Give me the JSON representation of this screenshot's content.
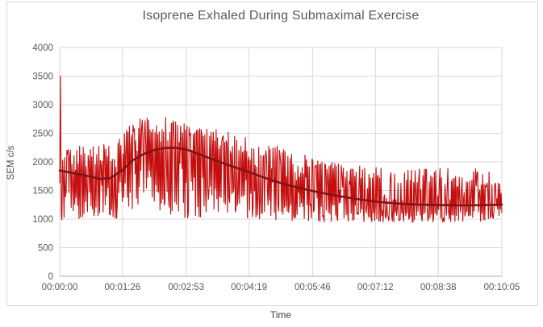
{
  "chart_data": {
    "type": "line",
    "title": "Isoprene Exhaled During Submaximal Exercise",
    "xlabel": "Time",
    "ylabel": "SEM c/s",
    "ylim": [
      0,
      4000
    ],
    "y_tick_step": 500,
    "y_ticks": [
      0,
      500,
      1000,
      1500,
      2000,
      2500,
      3000,
      3500,
      4000
    ],
    "x_range_seconds": [
      0,
      605
    ],
    "x_ticks": [
      {
        "t": 0,
        "label": "00:00:00"
      },
      {
        "t": 86,
        "label": "00:01:26"
      },
      {
        "t": 173,
        "label": "00:02:53"
      },
      {
        "t": 259,
        "label": "00:04:19"
      },
      {
        "t": 346,
        "label": "00:05:46"
      },
      {
        "t": 432,
        "label": "00:07:12"
      },
      {
        "t": 518,
        "label": "00:08:38"
      },
      {
        "t": 605,
        "label": "00:10:05"
      }
    ],
    "grid": true,
    "legend": "none",
    "colors": {
      "raw_signal": "#C50F0F",
      "smoothed_trend": "#7E1416",
      "gridline": "#D9D9D9",
      "axis_line": "#BFBFBF",
      "text": "#595959"
    },
    "series": [
      {
        "name": "raw-signal",
        "style": "noisy-line",
        "initial_spike": {
          "t": 1,
          "value": 3500
        },
        "envelope_t_min_max": [
          [
            0,
            950,
            2300
          ],
          [
            20,
            1000,
            2280
          ],
          [
            40,
            980,
            2270
          ],
          [
            60,
            950,
            2300
          ],
          [
            80,
            1000,
            2450
          ],
          [
            95,
            1050,
            2650
          ],
          [
            110,
            1050,
            2780
          ],
          [
            130,
            1050,
            2800
          ],
          [
            150,
            1050,
            2780
          ],
          [
            170,
            1020,
            2700
          ],
          [
            190,
            1000,
            2640
          ],
          [
            210,
            1000,
            2580
          ],
          [
            230,
            1000,
            2530
          ],
          [
            250,
            1000,
            2470
          ],
          [
            270,
            990,
            2400
          ],
          [
            290,
            980,
            2320
          ],
          [
            310,
            970,
            2240
          ],
          [
            330,
            960,
            2160
          ],
          [
            350,
            950,
            2080
          ],
          [
            370,
            940,
            2010
          ],
          [
            390,
            940,
            1960
          ],
          [
            410,
            950,
            1930
          ],
          [
            430,
            940,
            1910
          ],
          [
            450,
            950,
            1900
          ],
          [
            470,
            950,
            1905
          ],
          [
            490,
            945,
            1900
          ],
          [
            510,
            950,
            1890
          ],
          [
            530,
            950,
            1900
          ],
          [
            550,
            950,
            1895
          ],
          [
            570,
            950,
            1900
          ],
          [
            590,
            960,
            1905
          ],
          [
            605,
            1000,
            1900
          ]
        ],
        "noise_seed": 20240907,
        "samples": 620,
        "fill_exponent": 0.55
      },
      {
        "name": "smoothed-trend",
        "style": "smooth-line",
        "points": [
          [
            0,
            1850
          ],
          [
            20,
            1800
          ],
          [
            40,
            1750
          ],
          [
            55,
            1700
          ],
          [
            70,
            1720
          ],
          [
            85,
            1850
          ],
          [
            100,
            2030
          ],
          [
            115,
            2140
          ],
          [
            130,
            2210
          ],
          [
            145,
            2245
          ],
          [
            160,
            2245
          ],
          [
            175,
            2210
          ],
          [
            190,
            2140
          ],
          [
            210,
            2040
          ],
          [
            230,
            1950
          ],
          [
            250,
            1860
          ],
          [
            270,
            1770
          ],
          [
            290,
            1680
          ],
          [
            310,
            1600
          ],
          [
            330,
            1540
          ],
          [
            350,
            1480
          ],
          [
            370,
            1430
          ],
          [
            390,
            1385
          ],
          [
            410,
            1345
          ],
          [
            430,
            1310
          ],
          [
            450,
            1285
          ],
          [
            470,
            1265
          ],
          [
            490,
            1255
          ],
          [
            510,
            1248
          ],
          [
            530,
            1243
          ],
          [
            550,
            1240
          ],
          [
            570,
            1242
          ],
          [
            590,
            1248
          ],
          [
            605,
            1252
          ]
        ]
      }
    ]
  }
}
